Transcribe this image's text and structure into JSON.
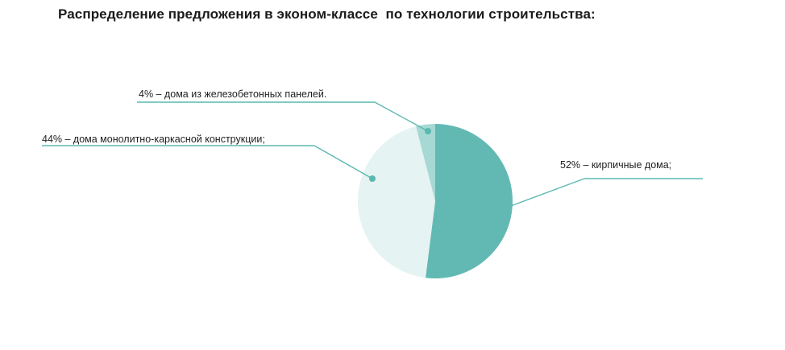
{
  "chart_data": {
    "type": "pie",
    "title": "Распределение предложения в эконом-классе  по технологии строительства:",
    "slices": [
      {
        "label": "52% – кирпичные дома;",
        "value": 52,
        "color": "#62b9b3"
      },
      {
        "label": "44% – дома монолитно-каркасной конструкции;",
        "value": 44,
        "color": "#e5f3f2"
      },
      {
        "label": "4% – дома из железобетонных панелей.",
        "value": 4,
        "color": "#a6d8d4"
      }
    ],
    "leader_color": "#5cb8b1",
    "legend": "leader-line labels"
  }
}
